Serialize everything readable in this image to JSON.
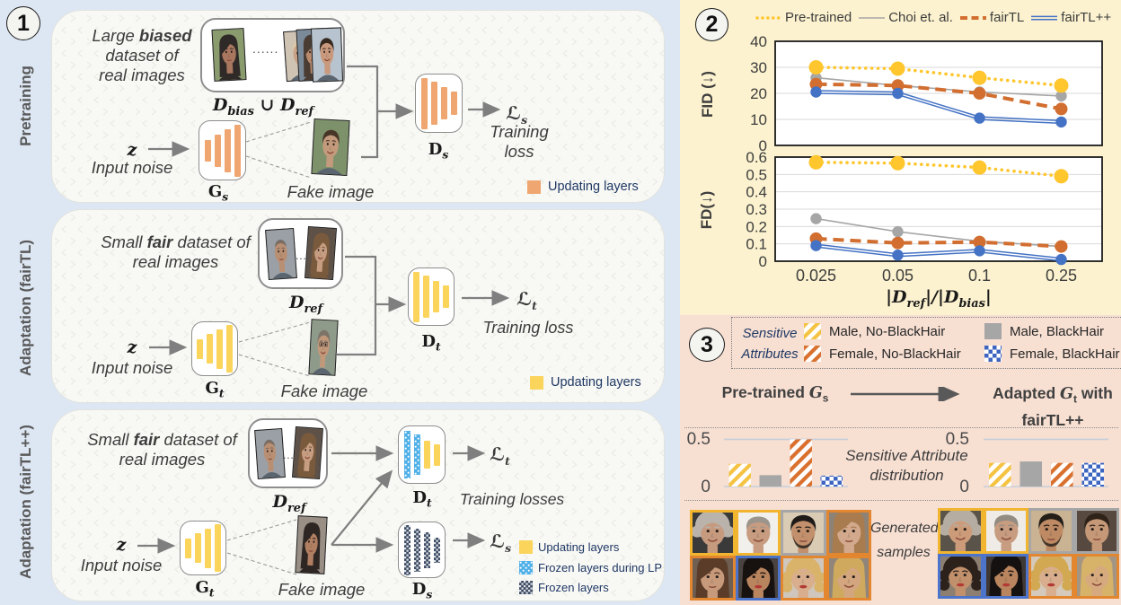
{
  "colors": {
    "page_bg": "#dde7f3",
    "panel_bg": "#f8f8f5",
    "chart_panel_bg": "#fcf2cf",
    "attr_panel_bg": "#f7dfd2",
    "updating_orange": "#efa671",
    "updating_yellow": "#fbd45c",
    "frozen_lp_blue": "#4fb0e8",
    "frozen_navy": "#3e4d66",
    "arrow_gray": "#7f7f7f",
    "legend_text_navy": "#1f3864",
    "series_pretrained": "#ffc62e",
    "series_choi": "#a6a6a6",
    "series_fairtl": "#d26e2f",
    "series_fairtlpp": "#4472c4",
    "border_yellow": "#f2b530",
    "border_gray": "#a6a6a6",
    "border_orange": "#e2862f",
    "border_blue": "#4b74ca",
    "bar_stripe_yellow": "#f5c242",
    "bar_gray": "#a6a6a6",
    "bar_stripe_orange": "#d9702e",
    "bar_check_blue": "#3c64c0"
  },
  "left_panels": [
    {
      "badge": "1",
      "side_label": "Pretraining",
      "desc": "Large **biased**<br>dataset of<br>real images",
      "dataset_caption": "D_{bias} ∪ D_{ref}",
      "dataset_dots": "......",
      "z_label": "z",
      "input_noise": "Input noise",
      "gen_label": "G_{s}",
      "fake_caption": "Fake image",
      "disc_label": "D_{s}",
      "loss_label": "ℒ_{s}",
      "loss_caption": "Training<br>loss",
      "legend": [
        {
          "swatch": "updating_orange",
          "label": "Updating layers"
        }
      ]
    },
    {
      "badge": "",
      "side_label": "Adaptation (fairTL)",
      "desc": "Small **fair** dataset of<br>real images",
      "dataset_caption": "D_{ref}",
      "dataset_dots": "....",
      "z_label": "z",
      "input_noise": "Input noise",
      "gen_label": "G_{t}",
      "fake_caption": "Fake image",
      "disc_label": "D_{t}",
      "loss_label": "ℒ_{t}",
      "loss_caption": "Training loss",
      "legend": [
        {
          "swatch": "updating_yellow",
          "label": "Updating layers"
        }
      ]
    },
    {
      "badge": "",
      "side_label": "Adaptation (fairTL++)",
      "desc": "Small **fair** dataset of<br>real images",
      "dataset_caption": "D_{ref}",
      "dataset_dots": "....",
      "z_label": "z",
      "input_noise": "Input noise",
      "gen_label": "G_{t}",
      "fake_caption": "Fake image",
      "disc_label": "D_{t}",
      "disc2_label": "D_{s}",
      "loss_label": "ℒ_{t}",
      "loss2_label": "ℒ_{s}",
      "loss_caption": "Training losses",
      "legend": [
        {
          "swatch": "updating_yellow",
          "label": "Updating layers"
        },
        {
          "swatch": "frozen_lp_blue",
          "label": "Frozen layers during LP"
        },
        {
          "swatch": "frozen_navy",
          "label": "Frozen layers"
        }
      ]
    }
  ],
  "chart_panel": {
    "badge": "2",
    "legend": [
      {
        "name": "Pre-trained",
        "style": "dotted",
        "color": "series_pretrained"
      },
      {
        "name": "Choi et. al.",
        "style": "solid",
        "color": "series_choi"
      },
      {
        "name": "fairTL",
        "style": "dashed",
        "color": "series_fairtl"
      },
      {
        "name": "fairTL++",
        "style": "double",
        "color": "series_fairtlpp"
      }
    ],
    "x_title": "|D_{ref}|/|D_{bias}|"
  },
  "chart_data": [
    {
      "type": "line",
      "title": "",
      "ylabel": "FID (↓)",
      "xlabel": "|D_ref|/|D_bias|",
      "categories": [
        "0.025",
        "0.05",
        "0.1",
        "0.25"
      ],
      "ylim": [
        0,
        40
      ],
      "yticks": [
        0,
        10,
        20,
        30,
        40
      ],
      "grid": true,
      "legend_position": "top",
      "series": [
        {
          "name": "Pre-trained",
          "values": [
            30,
            29.5,
            26,
            23
          ]
        },
        {
          "name": "Choi et. al.",
          "values": [
            26,
            23,
            20.5,
            19
          ]
        },
        {
          "name": "fairTL",
          "values": [
            23.5,
            23,
            20,
            14
          ]
        },
        {
          "name": "fairTL++",
          "values": [
            20.5,
            20,
            10.5,
            9
          ]
        }
      ]
    },
    {
      "type": "line",
      "title": "",
      "ylabel": "FD(↓)",
      "xlabel": "|D_ref|/|D_bias|",
      "categories": [
        "0.025",
        "0.05",
        "0.1",
        "0.25"
      ],
      "ylim": [
        0,
        0.6
      ],
      "yticks": [
        0,
        0.1,
        0.2,
        0.3,
        0.4,
        0.5,
        0.6
      ],
      "grid": true,
      "series": [
        {
          "name": "Pre-trained",
          "values": [
            0.57,
            0.565,
            0.54,
            0.49
          ]
        },
        {
          "name": "Choi et. al.",
          "values": [
            0.245,
            0.17,
            0.115,
            0.085
          ]
        },
        {
          "name": "fairTL",
          "values": [
            0.13,
            0.105,
            0.11,
            0.085
          ]
        },
        {
          "name": "fairTL++",
          "values": [
            0.09,
            0.035,
            0.06,
            0.01
          ]
        }
      ]
    },
    {
      "type": "bar",
      "title": "Pre-trained Gs sensitive attribute distribution",
      "categories": [
        "Male, No-BlackHair",
        "Male, BlackHair",
        "Female, No-BlackHair",
        "Female, BlackHair"
      ],
      "values": [
        0.24,
        0.12,
        0.5,
        0.115
      ],
      "ylim": [
        0,
        0.5
      ],
      "yticks": [
        0,
        0.5
      ]
    },
    {
      "type": "bar",
      "title": "Adapted Gt with fairTL++ sensitive attribute distribution",
      "categories": [
        "Male, No-BlackHair",
        "Male, BlackHair",
        "Female, No-BlackHair",
        "Female, BlackHair"
      ],
      "values": [
        0.25,
        0.265,
        0.25,
        0.25
      ],
      "ylim": [
        0,
        0.5
      ],
      "yticks": [
        0,
        0.5
      ]
    }
  ],
  "attr_panel": {
    "badge": "3",
    "legend_title": "Sensitive<br>Attributes",
    "legend": [
      {
        "pattern": "stripe_yellow",
        "label": "Male, No-BlackHair"
      },
      {
        "pattern": "solid_gray",
        "label": "Male, BlackHair"
      },
      {
        "pattern": "stripe_orange",
        "label": "Female, No-BlackHair"
      },
      {
        "pattern": "check_blue",
        "label": "Female, BlackHair"
      }
    ],
    "left_title": "Pre-trained $G$_{s}",
    "right_title": "Adapted $G$_{t} with<br>fairTL++",
    "axis_top": "0.5",
    "axis_bottom": "0",
    "mid_caption": "Sensitive Attribute<br>distribution",
    "samples_caption": "Generated<br>samples",
    "left_grid_borders": [
      "border_yellow",
      "border_yellow",
      "border_gray",
      "border_orange",
      "border_orange",
      "border_blue",
      "border_orange",
      "border_orange"
    ],
    "right_grid_borders": [
      "border_yellow",
      "border_yellow",
      "border_gray",
      "border_gray",
      "border_blue",
      "border_blue",
      "border_orange",
      "border_orange"
    ]
  },
  "faces": {
    "p1_ds_a": {
      "bg": "#8a9b6e",
      "skin": "#a9775f",
      "hair": "#2f2a28",
      "style": "long"
    },
    "p1_ds_b": {
      "bg": "#cfc3b4",
      "skin": "#caa287",
      "hair": "#d9c9a8",
      "style": "short"
    },
    "p1_ds_c": {
      "bg": "#7b8a99",
      "skin": "#b98a6d",
      "hair": "#4a3c33",
      "style": "long"
    },
    "p1_ds_d": {
      "bg": "#b7c4cf",
      "skin": "#c9997e",
      "hair": "#35291f",
      "style": "short",
      "smile": true
    },
    "p1_fake": {
      "bg": "#7d926a",
      "skin": "#c49a7c",
      "hair": "#473528",
      "style": "short",
      "smile": true
    },
    "p2_ds_a": {
      "bg": "#9aa0a6",
      "skin": "#b98f74",
      "hair": "#6e6258",
      "style": "bald"
    },
    "p2_ds_b": {
      "bg": "#5d5148",
      "skin": "#c79d82",
      "hair": "#7a5a3c",
      "style": "long",
      "smile": true
    },
    "p2_fake": {
      "bg": "#8f9b8a",
      "skin": "#c2987a",
      "hair": "#7d7468",
      "style": "short",
      "glasses": true,
      "smile": true
    },
    "p3_ds_a": {
      "bg": "#9aa0a6",
      "skin": "#b98f74",
      "hair": "#6e6258",
      "style": "bald"
    },
    "p3_ds_b": {
      "bg": "#5d5148",
      "skin": "#c79d82",
      "hair": "#7a5a3c",
      "style": "long",
      "smile": true
    },
    "p3_fake": {
      "bg": "#9a8f85",
      "skin": "#b07f62",
      "hair": "#2e2623",
      "style": "long"
    },
    "gl1": {
      "bg": "#3a3a3a",
      "skin": "#c59a7e",
      "hair": "#b9b3ac",
      "style": "messy",
      "smile": true
    },
    "gl2": {
      "bg": "#f2f0ec",
      "skin": "#c79c80",
      "hair": "#9c958c",
      "style": "slick",
      "smile": true
    },
    "gl3": {
      "bg": "#d9cbb4",
      "skin": "#c2906c",
      "hair": "#1f1b18",
      "style": "short",
      "beard": true
    },
    "gl4": {
      "bg": "#8c8276",
      "skin": "#d2a98c",
      "hair": "#a87c4f",
      "style": "long"
    },
    "gl5": {
      "bg": "#6e5f52",
      "skin": "#c89a7c",
      "hair": "#5a3c28",
      "style": "long"
    },
    "gl6": {
      "bg": "#4a4340",
      "skin": "#b9855f",
      "hair": "#17120f",
      "style": "long",
      "lips": true
    },
    "gl7": {
      "bg": "#cfc7bd",
      "skin": "#d8ae8e",
      "hair": "#d9b36a",
      "style": "curly",
      "lips": true
    },
    "gl8": {
      "bg": "#8f857a",
      "skin": "#d3a67f",
      "hair": "#cfa95e",
      "style": "long",
      "smile": true
    },
    "gr1": {
      "bg": "#5a5349",
      "skin": "#cc9c7a",
      "hair": "#b5ada1",
      "style": "messy",
      "smile": true
    },
    "gr2": {
      "bg": "#efece7",
      "skin": "#c79c80",
      "hair": "#938c82",
      "style": "slick",
      "smile": true
    },
    "gr3": {
      "bg": "#c9b393",
      "skin": "#bd8a64",
      "hair": "#241e19",
      "style": "short",
      "beard": true
    },
    "gr4": {
      "bg": "#57493f",
      "skin": "#c59877",
      "hair": "#2e2219",
      "style": "short"
    },
    "gr5": {
      "bg": "#8c7f72",
      "skin": "#c1906c",
      "hair": "#2c211b",
      "style": "curly",
      "lips": true
    },
    "gr6": {
      "bg": "#3f3835",
      "skin": "#b9855f",
      "hair": "#151110",
      "style": "long",
      "lips": true
    },
    "gr7": {
      "bg": "#d4c9ba",
      "skin": "#d8ae8e",
      "hair": "#d2a852",
      "style": "curly",
      "lips": true
    },
    "gr8": {
      "bg": "#a39584",
      "skin": "#d6a97f",
      "hair": "#d7b269",
      "style": "long",
      "smile": true
    }
  }
}
